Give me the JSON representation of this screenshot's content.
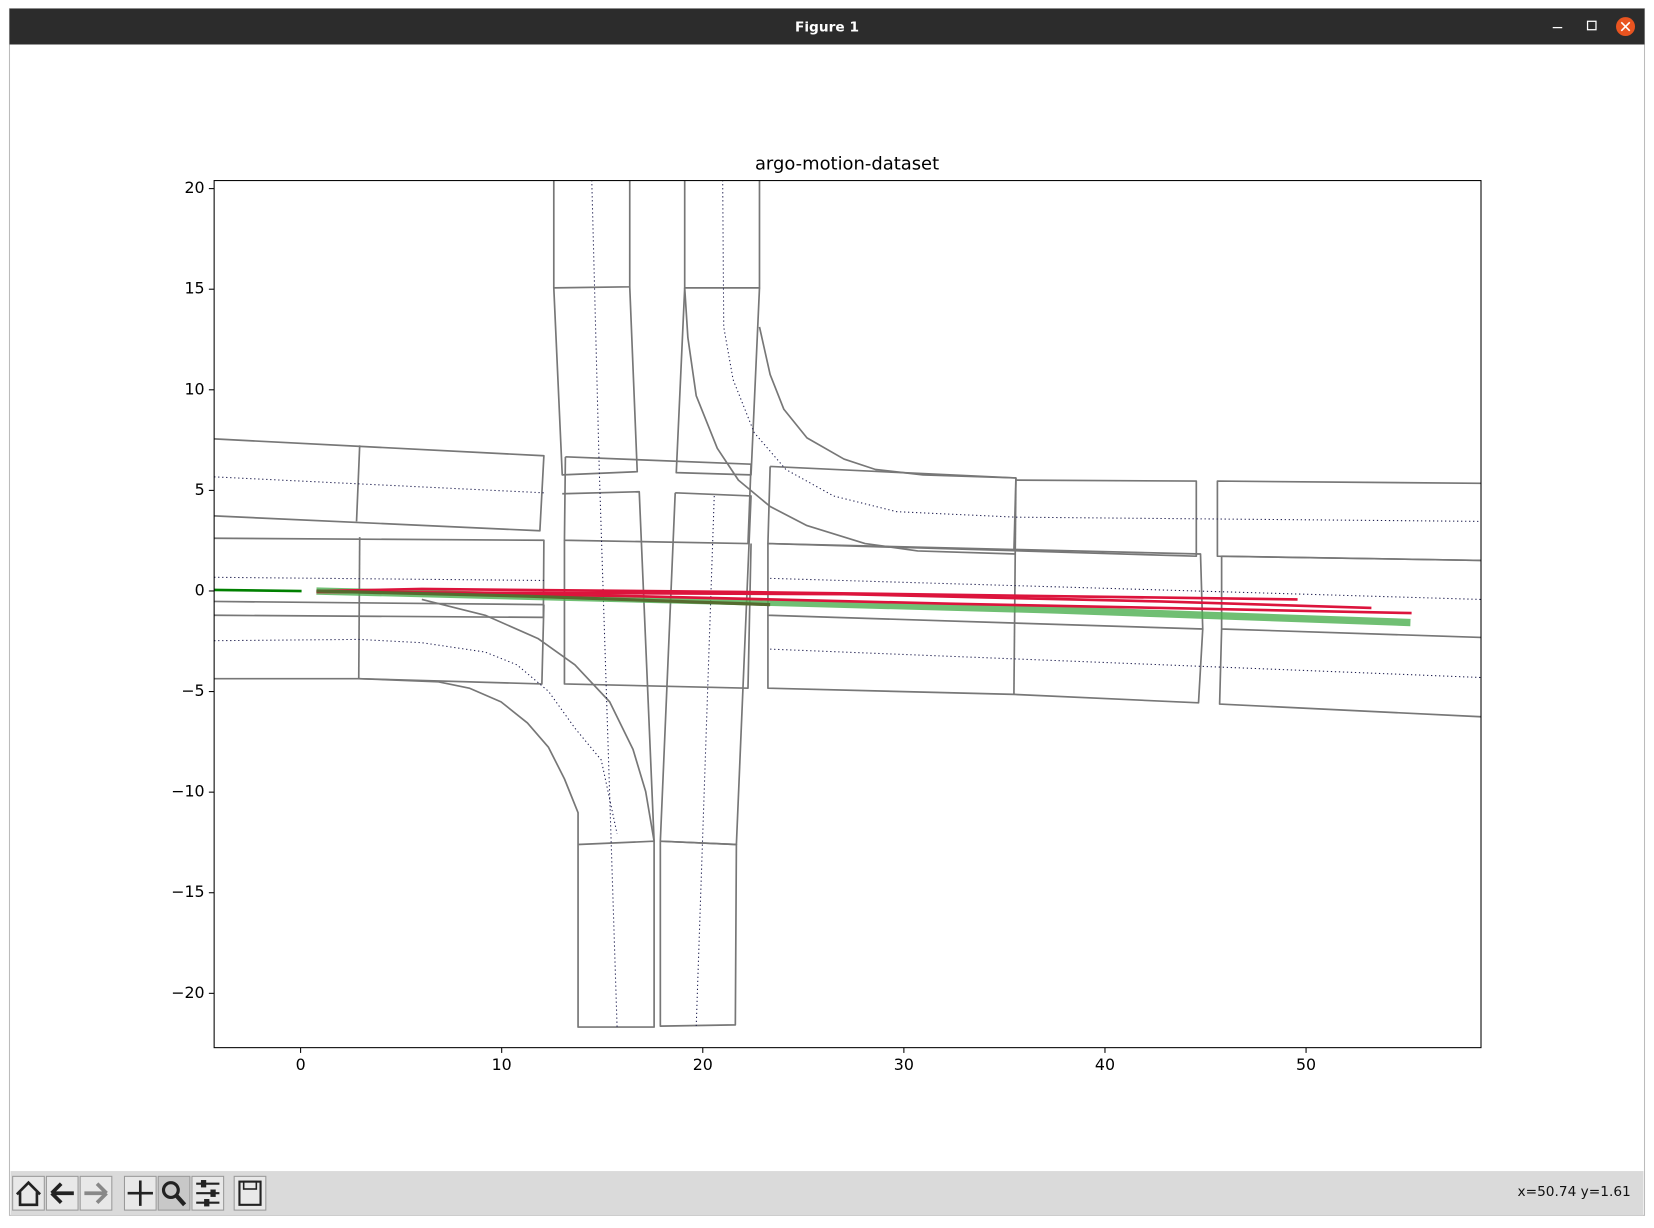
{
  "window": {
    "title": "Figure 1"
  },
  "toolbar": {
    "status": "x=50.74 y=1.61"
  },
  "chart_data": {
    "type": "line",
    "title": "argo-motion-dataset",
    "xlim": [
      -4.3,
      58.7
    ],
    "ylim": [
      -22.7,
      20.4
    ],
    "xticks": [
      0,
      10,
      20,
      30,
      40,
      50
    ],
    "yticks": [
      {
        "value": -20,
        "label": "−20"
      },
      {
        "value": -15,
        "label": "−15"
      },
      {
        "value": -10,
        "label": "−10"
      },
      {
        "value": -5,
        "label": "−5"
      },
      0,
      5,
      10,
      15,
      20
    ],
    "series": [
      {
        "color": "#777777",
        "linewidth": 1.6,
        "linestyle": "solid",
        "x": [
          -4.3,
          12.1,
          11.9,
          -4.3
        ],
        "y": [
          7.56,
          6.72,
          2.99,
          3.73
        ]
      },
      {
        "color": "#777777",
        "linewidth": 1.6,
        "linestyle": "solid",
        "x": [
          2.94,
          2.78
        ],
        "y": [
          7.24,
          3.46
        ]
      },
      {
        "color": "#777777",
        "linewidth": 1.6,
        "linestyle": "solid",
        "x": [
          -4.3,
          12.1,
          12.07,
          -4.3
        ],
        "y": [
          2.62,
          2.52,
          -1.31,
          -1.21
        ]
      },
      {
        "color": "#777777",
        "linewidth": 1.6,
        "linestyle": "solid",
        "x": [
          2.94,
          2.89
        ],
        "y": [
          2.68,
          -4.36
        ]
      },
      {
        "color": "#777777",
        "linewidth": 1.6,
        "linestyle": "solid",
        "x": [
          -4.3,
          2.89,
          12,
          12.1
        ],
        "y": [
          -4.36,
          -4.36,
          -4.62,
          -0.68
        ]
      },
      {
        "color": "#777777",
        "linewidth": 1.6,
        "linestyle": "solid",
        "x": [
          -4.3,
          12.1
        ],
        "y": [
          -0.52,
          -0.68
        ]
      },
      {
        "color": "#777777",
        "linewidth": 1.6,
        "linestyle": "solid",
        "x": [
          12.59,
          12.59,
          16.37,
          16.37
        ],
        "y": [
          20.42,
          15.07,
          15.12,
          20.42
        ]
      },
      {
        "color": "#777777",
        "linewidth": 1.6,
        "linestyle": "solid",
        "x": [
          12.59,
          13.01,
          16.74,
          16.37
        ],
        "y": [
          15.07,
          5.77,
          5.93,
          15.12
        ]
      },
      {
        "color": "#777777",
        "linewidth": 1.6,
        "linestyle": "solid",
        "x": [
          19.1,
          19.1,
          22.82,
          22.82
        ],
        "y": [
          20.42,
          15.07,
          15.07,
          20.42
        ]
      },
      {
        "color": "#777777",
        "linewidth": 1.6,
        "linestyle": "solid",
        "x": [
          19.1,
          18.68,
          22.4,
          22.82
        ],
        "y": [
          15.07,
          5.88,
          5.77,
          15.07
        ]
      },
      {
        "color": "#777777",
        "linewidth": 1.6,
        "linestyle": "solid",
        "x": [
          22.82,
          23.35,
          24.03,
          25.18,
          27.02,
          28.59,
          30.95,
          35.57
        ],
        "y": [
          13.12,
          10.76,
          9.03,
          7.61,
          6.56,
          6.04,
          5.77,
          5.62
        ]
      },
      {
        "color": "#777777",
        "linewidth": 1.6,
        "linestyle": "solid",
        "x": [
          19.1,
          19.26,
          19.67,
          20.72,
          21.77,
          23.35,
          25.18,
          28.07,
          30.69,
          35.57
        ],
        "y": [
          15.07,
          12.6,
          9.71,
          7.09,
          5.51,
          4.2,
          3.25,
          2.36,
          1.99,
          1.84
        ]
      },
      {
        "color": "#777777",
        "linewidth": 1.6,
        "linestyle": "solid",
        "x": [
          13.17,
          22.4,
          22.25,
          13.12,
          13.17
        ],
        "y": [
          6.67,
          6.3,
          2.36,
          2.52,
          6.67
        ]
      },
      {
        "color": "#777777",
        "linewidth": 1.6,
        "linestyle": "solid",
        "x": [
          13.01,
          16.84,
          17.58
        ],
        "y": [
          4.83,
          4.93,
          -12.44
        ]
      },
      {
        "color": "#777777",
        "linewidth": 1.6,
        "linestyle": "solid",
        "x": [
          13.12,
          13.12,
          22.25,
          22.4
        ],
        "y": [
          2.52,
          -4.62,
          -4.83,
          2.36
        ]
      },
      {
        "color": "#777777",
        "linewidth": 1.6,
        "linestyle": "solid",
        "x": [
          13.8,
          17.58,
          17.58,
          13.8,
          13.8
        ],
        "y": [
          -12.6,
          -12.44,
          -21.68,
          -21.68,
          -12.6
        ]
      },
      {
        "color": "#777777",
        "linewidth": 1.6,
        "linestyle": "solid",
        "x": [
          17.89,
          21.67,
          21.62,
          17.89,
          17.89
        ],
        "y": [
          -12.44,
          -12.6,
          -21.57,
          -21.63,
          -12.44
        ]
      },
      {
        "color": "#777777",
        "linewidth": 1.6,
        "linestyle": "solid",
        "x": [
          2.89,
          6.82,
          8.39,
          9.97,
          11.28,
          12.33,
          13.12,
          13.8,
          13.8
        ],
        "y": [
          -4.36,
          -4.51,
          -4.83,
          -5.51,
          -6.56,
          -7.77,
          -9.34,
          -11.02,
          -12.6
        ]
      },
      {
        "color": "#777777",
        "linewidth": 1.6,
        "linestyle": "solid",
        "x": [
          6.03,
          9.18,
          11.8,
          13.64,
          15.37,
          16.53,
          17.16,
          17.58
        ],
        "y": [
          -0.42,
          -1.21,
          -2.36,
          -3.67,
          -5.51,
          -7.87,
          -9.97,
          -12.44
        ]
      },
      {
        "color": "#777777",
        "linewidth": 1.6,
        "linestyle": "solid",
        "x": [
          18.63,
          22.4,
          21.67,
          17.89,
          18.63
        ],
        "y": [
          4.88,
          4.72,
          -12.6,
          -12.44,
          4.88
        ]
      },
      {
        "color": "#777777",
        "linewidth": 1.6,
        "linestyle": "solid",
        "x": [
          23.35,
          35.57,
          35.47,
          23.24,
          23.35
        ],
        "y": [
          6.19,
          5.62,
          2.0,
          2.36,
          6.19
        ]
      },
      {
        "color": "#777777",
        "linewidth": 1.6,
        "linestyle": "solid",
        "x": [
          35.57,
          44.54,
          44.54,
          35.47
        ],
        "y": [
          5.51,
          5.46,
          1.73,
          2.0
        ]
      },
      {
        "color": "#777777",
        "linewidth": 1.6,
        "linestyle": "solid",
        "x": [
          58.7,
          45.59,
          45.59,
          58.7
        ],
        "y": [
          5.35,
          5.46,
          1.73,
          1.52
        ]
      },
      {
        "color": "#777777",
        "linewidth": 1.6,
        "linestyle": "solid",
        "x": [
          23.24,
          44.75,
          44.86,
          23.24,
          23.24
        ],
        "y": [
          2.36,
          1.84,
          -1.89,
          -1.21,
          2.36
        ]
      },
      {
        "color": "#777777",
        "linewidth": 1.6,
        "linestyle": "solid",
        "x": [
          58.7,
          45.8,
          45.8,
          58.7
        ],
        "y": [
          1.52,
          1.73,
          -1.89,
          -2.31
        ]
      },
      {
        "color": "#777777",
        "linewidth": 1.6,
        "linestyle": "solid",
        "x": [
          23.24,
          23.24,
          35.47,
          44.65,
          44.86
        ],
        "y": [
          -1.21,
          -4.83,
          -5.14,
          -5.56,
          -1.89
        ]
      },
      {
        "color": "#777777",
        "linewidth": 1.6,
        "linestyle": "solid",
        "x": [
          45.8,
          45.7,
          58.7
        ],
        "y": [
          -1.89,
          -5.62,
          -6.25
        ]
      },
      {
        "color": "#777777",
        "linewidth": 1.6,
        "linestyle": "solid",
        "x": [
          35.57,
          35.47
        ],
        "y": [
          5.62,
          -5.14
        ]
      },
      {
        "color": "#1c1c4e",
        "linewidth": 1,
        "linestyle": "dotted",
        "x": [
          -4.3,
          12.1
        ],
        "y": [
          5.67,
          4.88
        ]
      },
      {
        "color": "#1c1c4e",
        "linewidth": 1,
        "linestyle": "dotted",
        "x": [
          -4.3,
          12.1
        ],
        "y": [
          0.68,
          0.52
        ]
      },
      {
        "color": "#1c1c4e",
        "linewidth": 1,
        "linestyle": "dotted",
        "x": [
          -4.3,
          2.89,
          6.03,
          9.18,
          10.76,
          12.33,
          13.64,
          14.95,
          15.74
        ],
        "y": [
          -2.47,
          -2.41,
          -2.57,
          -3.04,
          -3.67,
          -4.99,
          -6.82,
          -8.4,
          -12.07
        ]
      },
      {
        "color": "#1c1c4e",
        "linewidth": 1,
        "linestyle": "dotted",
        "x": [
          14.48,
          14.85,
          15.74
        ],
        "y": [
          20.42,
          6.04,
          -21.68
        ]
      },
      {
        "color": "#1c1c4e",
        "linewidth": 1,
        "linestyle": "dotted",
        "x": [
          20.99,
          21.04,
          21.51,
          22.56,
          24.13,
          26.5,
          29.64,
          35.57,
          58.7
        ],
        "y": [
          20.42,
          13.12,
          10.5,
          7.87,
          6.04,
          4.72,
          3.94,
          3.67,
          3.46
        ]
      },
      {
        "color": "#1c1c4e",
        "linewidth": 1,
        "linestyle": "dotted",
        "x": [
          20.57,
          19.67
        ],
        "y": [
          4.72,
          -21.68
        ]
      },
      {
        "color": "#1c1c4e",
        "linewidth": 1,
        "linestyle": "dotted",
        "x": [
          23.35,
          58.7
        ],
        "y": [
          0.63,
          -0.42
        ]
      },
      {
        "color": "#1c1c4e",
        "linewidth": 1,
        "linestyle": "dotted",
        "x": [
          23.35,
          58.7
        ],
        "y": [
          -2.89,
          -4.3
        ]
      },
      {
        "color": "#4caf50",
        "linewidth": 7,
        "linestyle": "solid",
        "opacity": 0.8,
        "x": [
          0.79,
          21.77,
          37.51,
          55.19
        ],
        "y": [
          0,
          -0.52,
          -0.94,
          -1.57
        ]
      },
      {
        "color": "#dc143c",
        "linewidth": 2.5,
        "linestyle": "solid",
        "x": [
          0.79,
          6.03,
          21.77,
          37.51,
          49.58
        ],
        "y": [
          0,
          0.1,
          -0.05,
          -0.26,
          -0.42
        ]
      },
      {
        "color": "#dc143c",
        "linewidth": 2.5,
        "linestyle": "solid",
        "x": [
          0.79,
          27.02,
          42.76,
          53.25
        ],
        "y": [
          -0.05,
          -0.16,
          -0.52,
          -0.84
        ]
      },
      {
        "color": "#dc143c",
        "linewidth": 2.5,
        "linestyle": "solid",
        "x": [
          0.79,
          16.53,
          32.27,
          55.25
        ],
        "y": [
          0,
          -0.26,
          -0.63,
          -1.1
        ]
      },
      {
        "color": "#556b2f",
        "linewidth": 3,
        "linestyle": "solid",
        "x": [
          0.79,
          11.28,
          23.35
        ],
        "y": [
          0,
          -0.26,
          -0.68
        ]
      },
      {
        "color": "#008000",
        "linewidth": 2.5,
        "linestyle": "solid",
        "x": [
          -4.3,
          0.05
        ],
        "y": [
          0.05,
          0
        ]
      }
    ]
  }
}
